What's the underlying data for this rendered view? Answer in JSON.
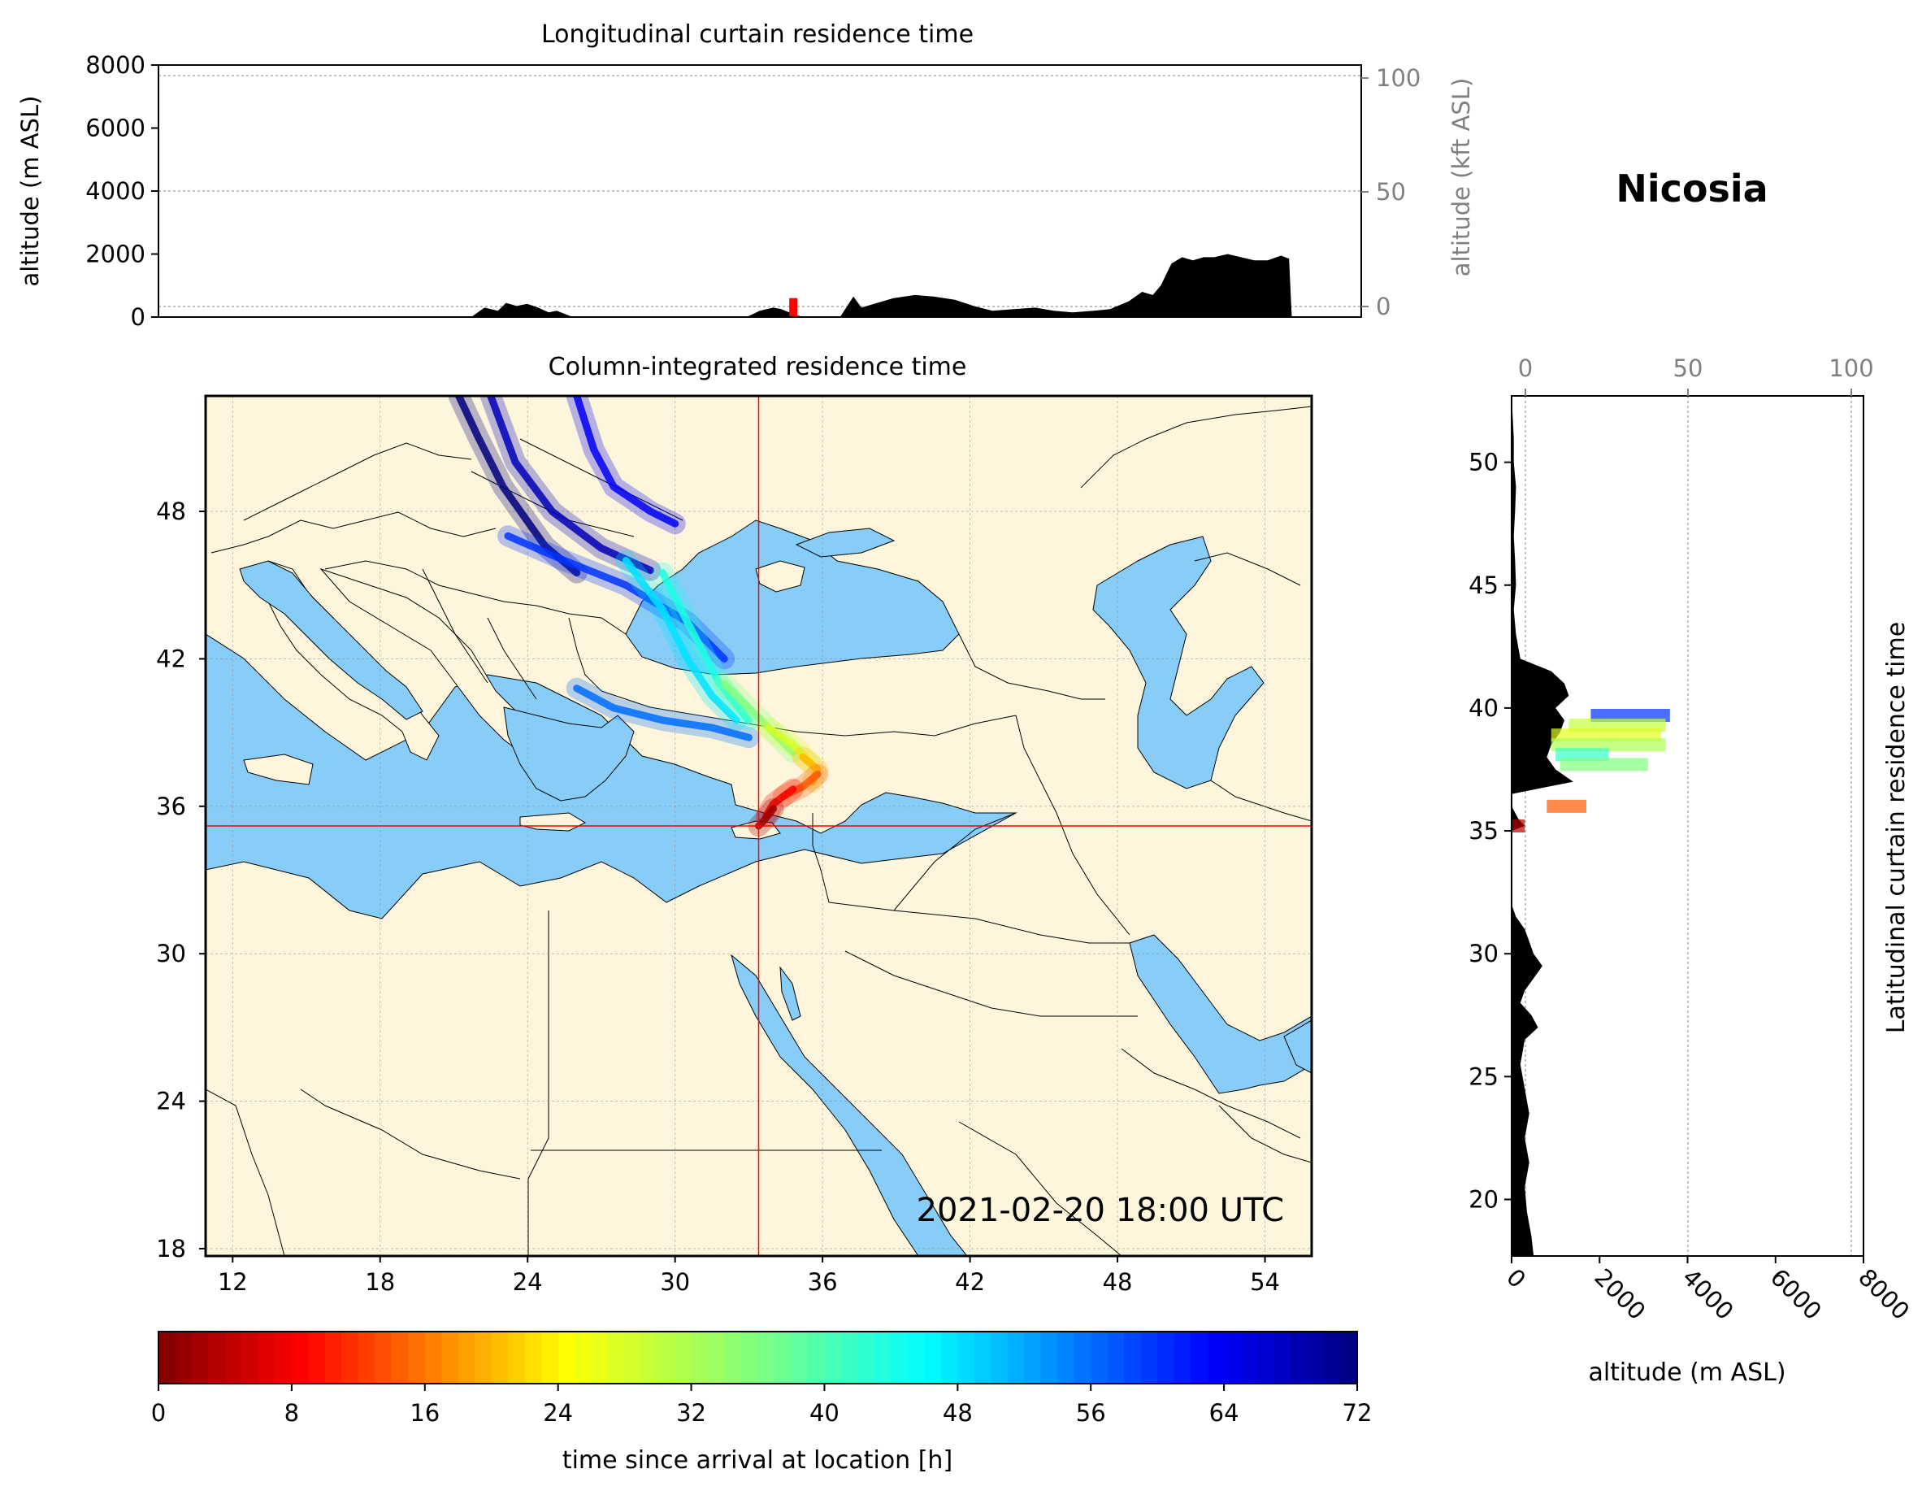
{
  "station": "Nicosia",
  "timestamp": "2021-02-20 18:00 UTC",
  "colors": {
    "land": "#fef6dc",
    "sea": "#87cdf8",
    "terrain": "#000000",
    "crosshair": "#ff0000",
    "secondary_axis": "#808080"
  },
  "chart_data": [
    {
      "type": "area",
      "title": "Longitudinal curtain residence time",
      "ylabel": "altitude (m ASL)",
      "ylabel_right": "altitude (kft ASL)",
      "ylim": [
        0,
        8000
      ],
      "yticks": [
        "0",
        "2000",
        "4000",
        "6000",
        "8000"
      ],
      "yticks_right": [
        "0",
        "50",
        "100"
      ],
      "xlim": [
        10,
        55
      ],
      "terrain": {
        "x": [
          10,
          21.7,
          22.2,
          22.7,
          23.0,
          23.4,
          23.8,
          24.2,
          24.6,
          24.9,
          25.5,
          32,
          32.5,
          33.0,
          33.3,
          33.6,
          33.9,
          34.2,
          34.5,
          35.5,
          36.0,
          36.3,
          36.7,
          37.5,
          38.3,
          39.0,
          39.8,
          40.5,
          41.2,
          42.0,
          42.8,
          43.5,
          44.2,
          45.0,
          45.6,
          46.3,
          46.8,
          47.2,
          47.5,
          47.9,
          48.3,
          48.7,
          49.1,
          49.5,
          50.0,
          50.5,
          51.0,
          51.5,
          52.0,
          52.3,
          52.4,
          55
        ],
        "elevation_m": [
          0,
          0,
          300,
          200,
          450,
          350,
          420,
          300,
          150,
          200,
          0,
          0,
          200,
          300,
          250,
          150,
          50,
          0,
          0,
          0,
          650,
          300,
          400,
          600,
          700,
          650,
          550,
          350,
          200,
          250,
          300,
          200,
          150,
          200,
          250,
          500,
          800,
          700,
          1000,
          1700,
          1900,
          1800,
          1900,
          1900,
          2000,
          1900,
          1800,
          1800,
          1950,
          1850,
          0,
          0
        ]
      },
      "plume_patch": {
        "x": [
          33.6,
          33.9
        ],
        "altitude_m": [
          0,
          600
        ],
        "color": "#ff0000"
      }
    },
    {
      "type": "heatmap",
      "title": "Column-integrated residence time",
      "xticks": [
        "12",
        "18",
        "24",
        "30",
        "36",
        "42",
        "48",
        "54"
      ],
      "yticks": [
        "18",
        "24",
        "30",
        "36",
        "42",
        "48"
      ],
      "xlim": [
        10.9,
        55.9
      ],
      "ylim": [
        17.7,
        52.7
      ],
      "crosshair": {
        "lon": 33.4,
        "lat": 35.2
      },
      "trajectory_bands": [
        {
          "time_h": 72,
          "points": [
            [
              21.2,
              52.7
            ],
            [
              22,
              51
            ],
            [
              23,
              49
            ],
            [
              24.7,
              46.6
            ],
            [
              26,
              45.5
            ]
          ]
        },
        {
          "time_h": 68,
          "points": [
            [
              22.5,
              52.7
            ],
            [
              23.5,
              50
            ],
            [
              25,
              48
            ],
            [
              27,
              46.5
            ],
            [
              29,
              45.6
            ]
          ]
        },
        {
          "time_h": 64,
          "points": [
            [
              26,
              52.7
            ],
            [
              26.7,
              50.5
            ],
            [
              27.5,
              49
            ],
            [
              29,
              48
            ],
            [
              30,
              47.5
            ]
          ]
        },
        {
          "time_h": 60,
          "points": [
            [
              23.2,
              47
            ],
            [
              25.5,
              46
            ],
            [
              28,
              45
            ],
            [
              30.5,
              43.5
            ],
            [
              32,
              42
            ]
          ]
        },
        {
          "time_h": 56,
          "points": [
            [
              26,
              40.8
            ],
            [
              27.5,
              40
            ],
            [
              29.5,
              39.5
            ],
            [
              31.5,
              39.2
            ],
            [
              33,
              38.8
            ]
          ]
        },
        {
          "time_h": 48,
          "points": [
            [
              28,
              46
            ],
            [
              29.5,
              44
            ],
            [
              30.5,
              42
            ],
            [
              31.5,
              40.5
            ],
            [
              32.5,
              39.5
            ]
          ]
        },
        {
          "time_h": 44,
          "points": [
            [
              29.5,
              45.5
            ],
            [
              30.5,
              43.5
            ],
            [
              31.8,
              41
            ],
            [
              33,
              39.5
            ]
          ]
        },
        {
          "time_h": 36,
          "points": [
            [
              32,
              41
            ],
            [
              33,
              40
            ],
            [
              34,
              39
            ],
            [
              34.8,
              38.2
            ]
          ]
        },
        {
          "time_h": 28,
          "points": [
            [
              33.8,
              39.2
            ],
            [
              34.8,
              38.5
            ],
            [
              35.5,
              37.8
            ]
          ]
        },
        {
          "time_h": 20,
          "points": [
            [
              35.2,
              38
            ],
            [
              35.8,
              37.5
            ],
            [
              35.6,
              37
            ]
          ]
        },
        {
          "time_h": 14,
          "points": [
            [
              35.8,
              37.3
            ],
            [
              35.2,
              36.8
            ],
            [
              34.4,
              36.4
            ]
          ]
        },
        {
          "time_h": 8,
          "points": [
            [
              34.8,
              36.7
            ],
            [
              34,
              36.1
            ],
            [
              33.7,
              35.6
            ]
          ]
        },
        {
          "time_h": 2,
          "points": [
            [
              34,
              35.9
            ],
            [
              33.6,
              35.4
            ],
            [
              33.4,
              35.2
            ]
          ]
        }
      ]
    },
    {
      "type": "area",
      "title": "Latitudinal curtain residence time",
      "xlabel": "altitude (m ASL)",
      "xlim": [
        0,
        8000
      ],
      "xticks": [
        "0",
        "2000",
        "4000",
        "6000",
        "8000"
      ],
      "xticks_top": [
        "0",
        "50",
        "100"
      ],
      "ylim": [
        17.7,
        52.7
      ],
      "yticks": [
        "20",
        "25",
        "30",
        "35",
        "40",
        "45",
        "50"
      ],
      "terrain": {
        "lat": [
          17.7,
          18.5,
          19.5,
          20.5,
          21.5,
          22.5,
          23.5,
          24.5,
          25.5,
          26.5,
          27.0,
          27.5,
          28.0,
          28.5,
          29.0,
          29.5,
          30.0,
          30.5,
          31.0,
          31.5,
          32.0,
          35.0,
          35.2,
          35.5,
          36.0,
          36.5,
          37.0,
          37.5,
          38.0,
          38.5,
          39.0,
          39.5,
          40.0,
          40.5,
          41.0,
          41.5,
          42.0,
          43.0,
          44.0,
          45.0,
          46.0,
          47.0,
          48.0,
          49.0,
          50.0,
          51.0,
          52.7
        ],
        "width_m": [
          500,
          450,
          350,
          300,
          400,
          300,
          400,
          300,
          200,
          300,
          600,
          450,
          200,
          300,
          500,
          700,
          500,
          400,
          300,
          100,
          0,
          0,
          300,
          150,
          0,
          0,
          1400,
          1000,
          800,
          900,
          1100,
          1200,
          1000,
          1300,
          1200,
          900,
          200,
          100,
          50,
          100,
          80,
          50,
          80,
          100,
          50,
          50,
          0
        ]
      },
      "plume_bars": [
        {
          "lat": 39.7,
          "x": [
            1800,
            3600
          ],
          "time_h": 60
        },
        {
          "lat": 39.3,
          "x": [
            1300,
            3500
          ],
          "time_h": 30
        },
        {
          "lat": 38.9,
          "x": [
            900,
            3400
          ],
          "time_h": 27
        },
        {
          "lat": 38.5,
          "x": [
            900,
            3500
          ],
          "time_h": 32
        },
        {
          "lat": 38.1,
          "x": [
            1000,
            2200
          ],
          "time_h": 42
        },
        {
          "lat": 37.7,
          "x": [
            1100,
            3100
          ],
          "time_h": 36
        },
        {
          "lat": 36.0,
          "x": [
            800,
            1700
          ],
          "time_h": 14
        },
        {
          "lat": 35.2,
          "x": [
            0,
            300
          ],
          "time_h": 4
        }
      ]
    },
    {
      "type": "colorbar",
      "label": "time since arrival at location [h]",
      "range": [
        0,
        72
      ],
      "ticks": [
        "0",
        "8",
        "16",
        "24",
        "32",
        "40",
        "48",
        "56",
        "64",
        "72"
      ],
      "colormap": "jet_r"
    }
  ]
}
